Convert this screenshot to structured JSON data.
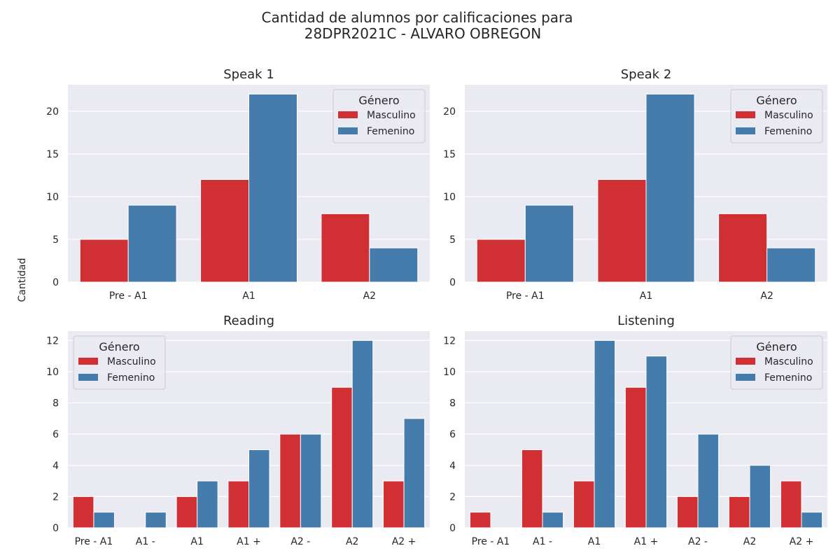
{
  "figure": {
    "title_line1": "Cantidad de alumnos por calificaciones para",
    "title_line2": "28DPR2021C - ALVARO OBREGON",
    "ylabel": "Cantidad",
    "legend_title": "Género",
    "series_names": [
      "Masculino",
      "Femenino"
    ],
    "colors": {
      "Masculino": "#d03033",
      "Femenino": "#457cab",
      "background": "#eaeaf2",
      "grid": "#ffffff"
    }
  },
  "chart_data": [
    {
      "type": "bar",
      "title": "Speak 1",
      "categories": [
        "Pre - A1",
        "A1",
        "A2"
      ],
      "series": [
        {
          "name": "Masculino",
          "values": [
            5,
            12,
            8
          ]
        },
        {
          "name": "Femenino",
          "values": [
            9,
            22,
            4
          ]
        }
      ],
      "ylim": [
        0,
        23.1
      ],
      "yticks": [
        0,
        5,
        10,
        15,
        20
      ],
      "legend": "top-right",
      "grid": true
    },
    {
      "type": "bar",
      "title": "Speak 2",
      "categories": [
        "Pre - A1",
        "A1",
        "A2"
      ],
      "series": [
        {
          "name": "Masculino",
          "values": [
            5,
            12,
            8
          ]
        },
        {
          "name": "Femenino",
          "values": [
            9,
            22,
            4
          ]
        }
      ],
      "ylim": [
        0,
        23.1
      ],
      "yticks": [
        0,
        5,
        10,
        15,
        20
      ],
      "legend": "top-right",
      "grid": true
    },
    {
      "type": "bar",
      "title": "Reading",
      "categories": [
        "Pre - A1",
        "A1 -",
        "A1",
        "A1 +",
        "A2 -",
        "A2",
        "A2 +"
      ],
      "series": [
        {
          "name": "Masculino",
          "values": [
            2,
            0,
            2,
            3,
            6,
            9,
            3
          ]
        },
        {
          "name": "Femenino",
          "values": [
            1,
            1,
            3,
            5,
            6,
            12,
            7
          ]
        }
      ],
      "ylim": [
        0,
        12.6
      ],
      "yticks": [
        0,
        2,
        4,
        6,
        8,
        10,
        12
      ],
      "legend": "top-left",
      "grid": true
    },
    {
      "type": "bar",
      "title": "Listening",
      "categories": [
        "Pre - A1",
        "A1 -",
        "A1",
        "A1 +",
        "A2 -",
        "A2",
        "A2 +"
      ],
      "series": [
        {
          "name": "Masculino",
          "values": [
            1,
            5,
            3,
            9,
            2,
            2,
            3
          ]
        },
        {
          "name": "Femenino",
          "values": [
            0,
            1,
            12,
            11,
            6,
            4,
            1
          ]
        }
      ],
      "ylim": [
        0,
        12.6
      ],
      "yticks": [
        0,
        2,
        4,
        6,
        8,
        10,
        12
      ],
      "legend": "top-right",
      "grid": true
    }
  ]
}
